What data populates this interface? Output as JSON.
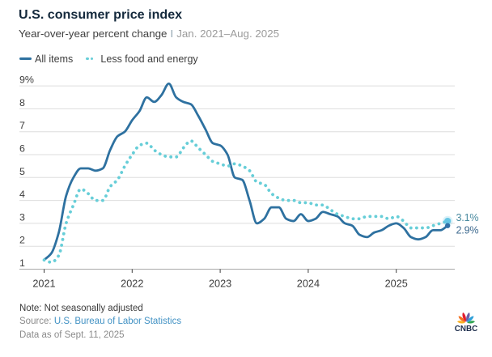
{
  "header": {
    "title": "U.S. consumer price index",
    "subtitle_main": "Year-over-year percent change",
    "subtitle_sep": "I",
    "subtitle_range": "Jan. 2021–Aug. 2025"
  },
  "legend": {
    "items": [
      {
        "label": "All items",
        "style": "solid",
        "color": "#2e71a0"
      },
      {
        "label": "Less food and energy",
        "style": "dotted",
        "color": "#67ced8"
      }
    ]
  },
  "chart_data": {
    "type": "line",
    "title": "U.S. consumer price index",
    "subtitle": "Year-over-year percent change | Jan. 2021–Aug. 2025",
    "x_start": "2021-01",
    "x_end": "2025-08",
    "x_frequency": "monthly",
    "x_tick_labels": [
      "2021",
      "2022",
      "2023",
      "2024",
      "2025"
    ],
    "y_ticks": [
      1,
      2,
      3,
      4,
      5,
      6,
      7,
      8,
      9
    ],
    "y_tick_labels": [
      "1",
      "2",
      "3",
      "4",
      "5",
      "6",
      "7",
      "8",
      "9%"
    ],
    "ylim": [
      1,
      9.2
    ],
    "grid": true,
    "legend_position": "top",
    "series": [
      {
        "name": "All items",
        "style": "solid",
        "color": "#2e71a0",
        "end_label": "2.9%",
        "end_label_color": "#3f6b90",
        "values": [
          1.4,
          1.7,
          2.6,
          4.2,
          5.0,
          5.4,
          5.4,
          5.3,
          5.4,
          6.2,
          6.8,
          7.0,
          7.5,
          7.9,
          8.5,
          8.3,
          8.6,
          9.1,
          8.5,
          8.3,
          8.2,
          7.7,
          7.1,
          6.5,
          6.4,
          6.0,
          5.0,
          4.9,
          4.0,
          3.0,
          3.2,
          3.7,
          3.7,
          3.2,
          3.1,
          3.4,
          3.1,
          3.2,
          3.5,
          3.4,
          3.3,
          3.0,
          2.9,
          2.5,
          2.4,
          2.6,
          2.7,
          2.9,
          3.0,
          2.8,
          2.4,
          2.3,
          2.4,
          2.7,
          2.7,
          2.9
        ]
      },
      {
        "name": "Less food and energy",
        "style": "dotted",
        "color": "#67ced8",
        "end_label": "3.1%",
        "end_label_color": "#4a8ba0",
        "values": [
          1.4,
          1.3,
          1.6,
          3.0,
          3.8,
          4.5,
          4.3,
          4.0,
          4.0,
          4.6,
          4.9,
          5.5,
          6.0,
          6.4,
          6.5,
          6.2,
          6.0,
          5.9,
          5.9,
          6.3,
          6.6,
          6.3,
          6.0,
          5.7,
          5.6,
          5.5,
          5.6,
          5.5,
          5.3,
          4.8,
          4.7,
          4.3,
          4.1,
          4.0,
          4.0,
          3.9,
          3.9,
          3.8,
          3.8,
          3.6,
          3.4,
          3.3,
          3.2,
          3.2,
          3.3,
          3.3,
          3.3,
          3.2,
          3.3,
          3.1,
          2.8,
          2.8,
          2.8,
          2.9,
          3.0,
          3.1
        ]
      }
    ],
    "end_dots": [
      {
        "series": "Less food and energy",
        "value": 3.1,
        "color": "#66c6e4",
        "radius": 4.1
      },
      {
        "series": "All items",
        "value": 2.9,
        "color": "#3372a8",
        "radius": 3.2
      }
    ]
  },
  "footer": {
    "note": "Note: Not seasonally adjusted",
    "source_prefix": "Source: ",
    "source_link": "U.S. Bureau of Labor Statistics",
    "data_as_of": "Data as of Sept. 11, 2025"
  },
  "logo": {
    "text": "CNBC",
    "text_color": "#1b2b4a",
    "feather_colors": [
      "#f9b122",
      "#f4701f",
      "#e11d2e",
      "#6a5fa8",
      "#2fa0d8",
      "#31a452"
    ]
  }
}
